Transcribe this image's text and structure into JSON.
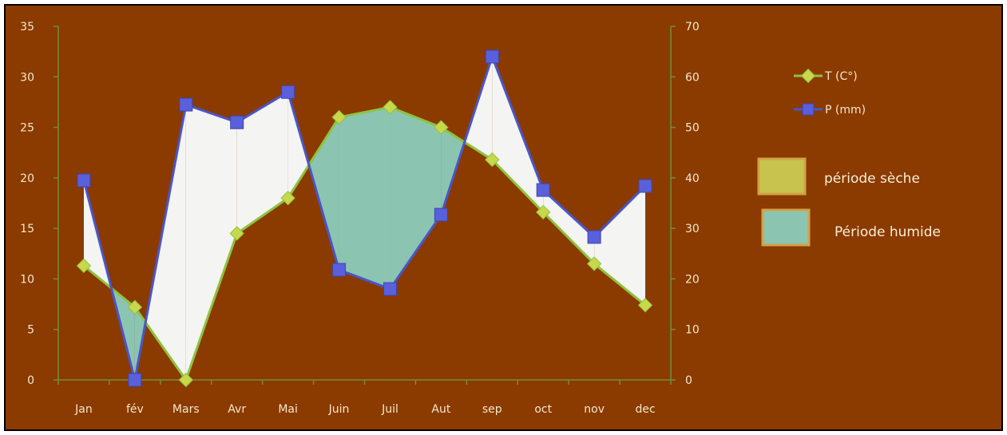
{
  "chart_data": {
    "type": "line",
    "categories": [
      "Jan",
      "fév",
      "Mars",
      "Avr",
      "Mai",
      "Juin",
      "Juil",
      "Aut",
      "sep",
      "oct",
      "nov",
      "dec"
    ],
    "series": [
      {
        "name": "T (C°)",
        "axis": "left",
        "marker": "diamond",
        "color": "#8fc23f",
        "marker_color": "#c8d84a",
        "values": [
          11.3,
          7.2,
          0,
          14.5,
          18,
          26,
          27,
          25,
          21.8,
          16.6,
          11.5,
          7.4
        ]
      },
      {
        "name": "P (mm)",
        "axis": "right",
        "marker": "square",
        "color": "#4a56c8",
        "marker_color": "#5a5fdb",
        "values": [
          39.5,
          0,
          54.5,
          51,
          57,
          21.8,
          18,
          32.7,
          64,
          37.6,
          28.3,
          38.4
        ]
      }
    ],
    "y_left": {
      "min": 0,
      "max": 35,
      "step": 5
    },
    "y_right": {
      "min": 0,
      "max": 70,
      "step": 10
    },
    "shading": {
      "dry_color": "#f4f4f2",
      "wet_color": "#8cc4b2"
    },
    "legend": {
      "placement": "right",
      "dry_label": "période sèche",
      "wet_label": "Période humide",
      "dry_swatch": "#c8c34e",
      "wet_swatch": "#8cc4b2",
      "swatch_border": "#d2a248"
    },
    "colors": {
      "background": "#8b3a00",
      "axis": "#6f8f3a"
    }
  }
}
